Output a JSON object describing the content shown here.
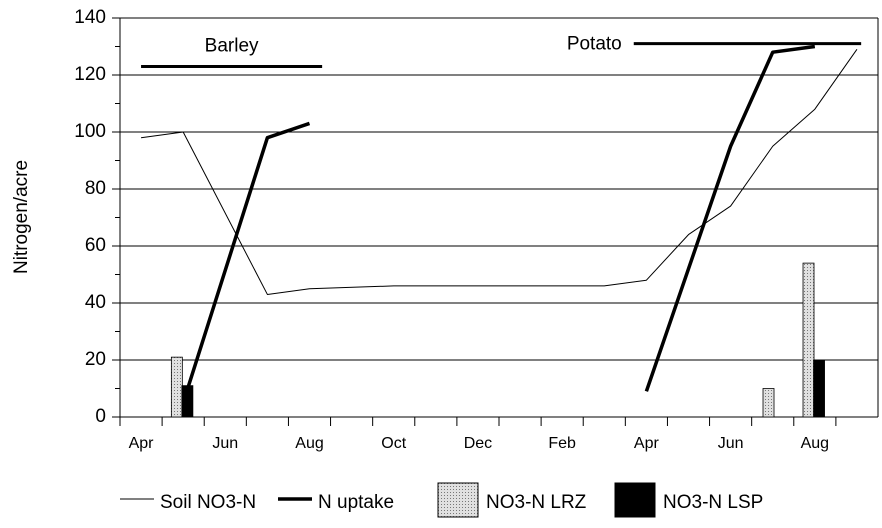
{
  "chart_data": {
    "type": "line",
    "y_label": "Nitrogen/acre",
    "ylim": [
      0,
      140
    ],
    "yticks": [
      0,
      20,
      40,
      60,
      80,
      100,
      120,
      140
    ],
    "grid": true,
    "xlim": [
      -0.5,
      17.5
    ],
    "xticks": [
      {
        "value": 0,
        "label": "Apr"
      },
      {
        "value": 2,
        "label": "Jun"
      },
      {
        "value": 4,
        "label": "Aug"
      },
      {
        "value": 6,
        "label": "Oct"
      },
      {
        "value": 8,
        "label": "Dec"
      },
      {
        "value": 10,
        "label": "Feb"
      },
      {
        "value": 12,
        "label": "Apr"
      },
      {
        "value": 14,
        "label": "Jun"
      },
      {
        "value": 16,
        "label": "Aug"
      }
    ],
    "legend": "bottom",
    "series": [
      {
        "name": "Soil NO3-N",
        "type": "line",
        "color": "#000000",
        "width": 1,
        "x": [
          0,
          1,
          3,
          4,
          6,
          8,
          10,
          11,
          12,
          13,
          14,
          15,
          16,
          17
        ],
        "values": [
          98,
          100,
          43,
          45,
          46,
          46,
          46,
          46,
          48,
          64,
          74,
          95,
          108,
          129
        ]
      },
      {
        "name": "N uptake",
        "type": "line",
        "color": "#000000",
        "width": 3.5,
        "x": [
          1,
          3,
          4,
          8,
          12,
          14,
          15,
          16
        ],
        "values": [
          5,
          98,
          103,
          null,
          9,
          95,
          128,
          130
        ]
      },
      {
        "name": "NO3-N LRZ",
        "type": "bar",
        "color": "#c8c8c8",
        "x": [
          0.85,
          14.9,
          15.85
        ],
        "values": [
          21,
          10,
          54
        ]
      },
      {
        "name": "NO3-N LSP",
        "type": "bar",
        "color": "#000000",
        "x": [
          1.1,
          16.1
        ],
        "values": [
          11,
          20
        ]
      }
    ],
    "annotations": [
      {
        "text": "Barley",
        "x": [
          0,
          4.3
        ],
        "y": 123
      },
      {
        "text": "Potato",
        "x": [
          11.7,
          17.1
        ],
        "y": 131
      }
    ]
  }
}
